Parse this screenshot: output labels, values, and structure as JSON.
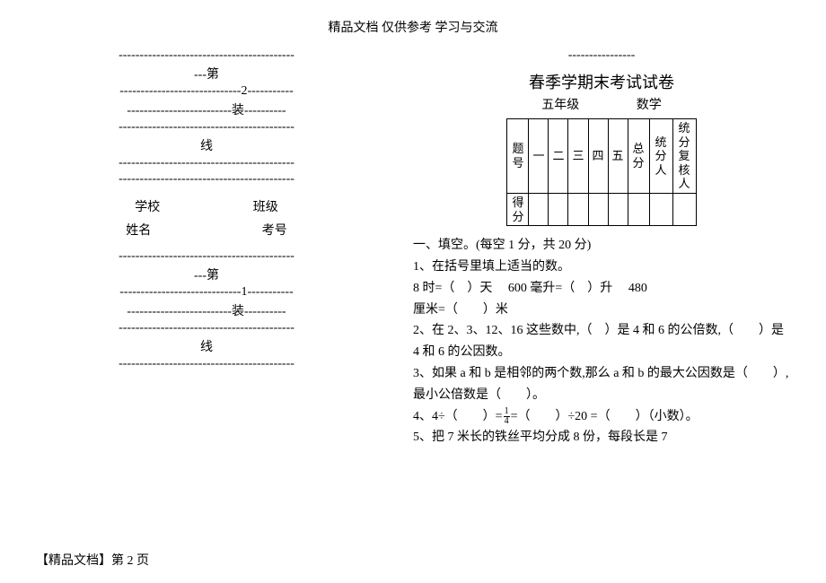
{
  "header": "精品文档 仅供参考 学习与交流",
  "left": {
    "dash_full": "------------------------------------------",
    "di": "---第",
    "dash_n2": "-----------------------------2-----------",
    "zhuang": "-------------------------装----------",
    "xian": "线",
    "school": "学校",
    "class": "班级",
    "name": "姓名",
    "exam": "考号",
    "dash_di2": "---第",
    "dash_n1": "-----------------------------1-----------",
    "zhuang2": "-------------------------装----------",
    "xian2": "线"
  },
  "right": {
    "short_dash": "----------------",
    "title": "春季学期末考试试卷",
    "grade": "五年级",
    "subject": "数学",
    "table": {
      "r1": [
        "题号",
        "一",
        "二",
        "三",
        "四",
        "五",
        "总分",
        "统分人",
        "统分复核人"
      ],
      "r2": [
        "得分",
        "",
        "",
        "",
        "",
        "",
        "",
        "",
        ""
      ]
    },
    "sec1": "一、填空。(每空 1 分，共 20 分)",
    "q1": "1、在括号里填上适当的数。",
    "q1_line1a": "8 时=（　）天",
    "q1_line1b": "600 毫升=（　）升",
    "q1_line1c": "480",
    "q1_line2": "厘米=（　　）米",
    "q2": "2、在 2、3、12、16 这些数中,（　）是 4 和 6 的公倍数,（　　）是 4 和 6 的公因数。",
    "q3": "3、如果 a 和 b 是相邻的两个数,那么 a 和 b 的最大公因数是（　　）,最小公倍数是（　　）。",
    "q4_a": "4、4÷（　　）=",
    "q4_b": "=（　　）÷20 =（　　）（小数）。",
    "q5": "5、把 7 米长的铁丝平均分成 8 份，每段长是 7",
    "frac_top": "1",
    "frac_bot": "4"
  },
  "footer": "【精品文档】第 2 页"
}
